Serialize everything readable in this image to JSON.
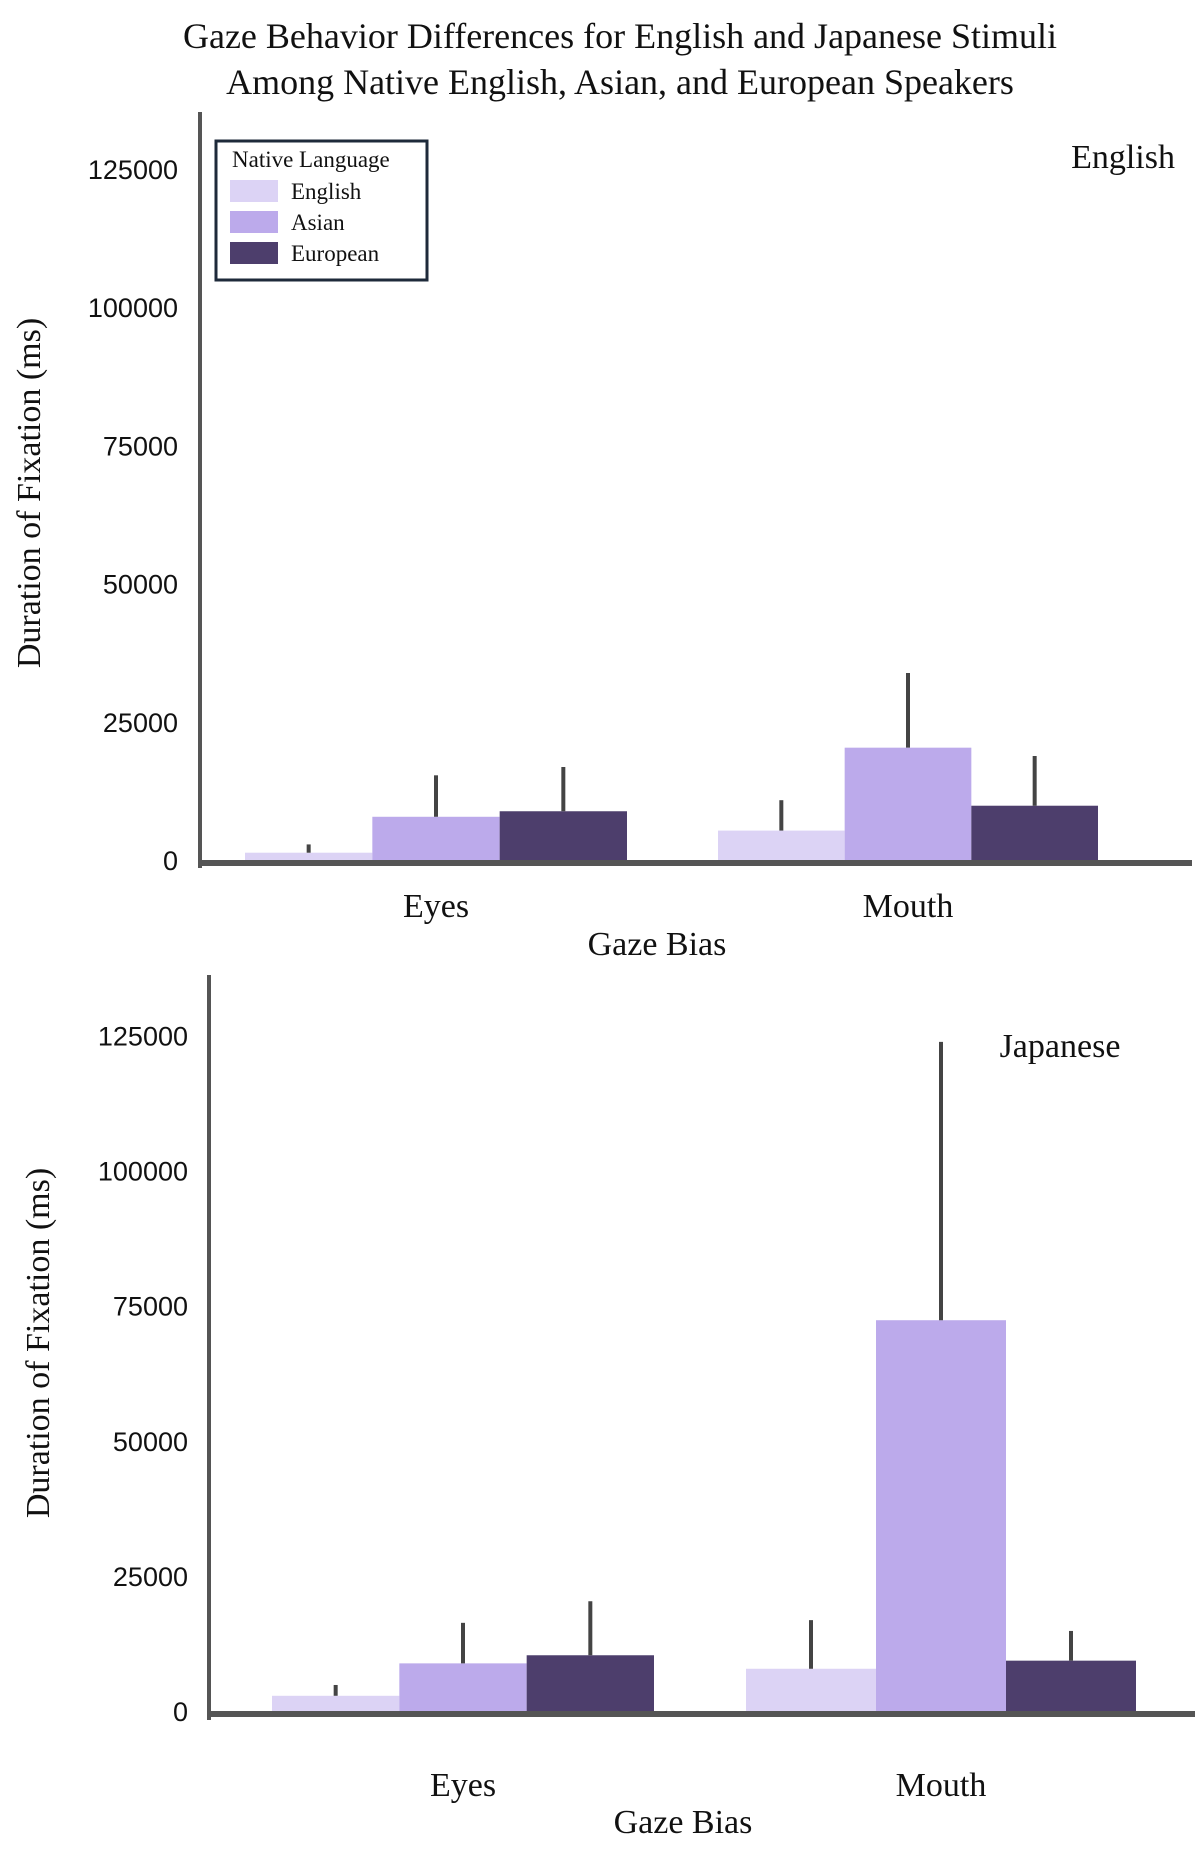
{
  "figure": {
    "title_line1": "Gaze Behavior Differences for English and Japanese Stimuli",
    "title_line2": "Among Native English, Asian, and European Speakers"
  },
  "legend": {
    "title": "Native Language",
    "items": [
      {
        "label": "English",
        "color": "#dcd3f5"
      },
      {
        "label": "Asian",
        "color": "#bcaaeb"
      },
      {
        "label": "European",
        "color": "#4d3e6c"
      }
    ]
  },
  "chart_data": [
    {
      "type": "bar",
      "panel_label": "English",
      "categories": [
        "Eyes",
        "Mouth"
      ],
      "xlabel": "Gaze Bias",
      "ylabel": "Duration of Fixation (ms)",
      "ylim": [
        0,
        135000
      ],
      "yticks": [
        0,
        25000,
        50000,
        75000,
        100000,
        125000
      ],
      "series": [
        {
          "name": "English",
          "color": "#dcd3f5",
          "values": [
            1500,
            5500
          ],
          "error_top": [
            3000,
            11000
          ]
        },
        {
          "name": "Asian",
          "color": "#bcaaeb",
          "values": [
            8000,
            20500
          ],
          "error_top": [
            15500,
            34000
          ]
        },
        {
          "name": "European",
          "color": "#4d3e6c",
          "values": [
            9000,
            10000
          ],
          "error_top": [
            17000,
            19000
          ]
        }
      ]
    },
    {
      "type": "bar",
      "panel_label": "Japanese",
      "categories": [
        "Eyes",
        "Mouth"
      ],
      "xlabel": "Gaze Bias",
      "ylabel": "Duration of Fixation (ms)",
      "ylim": [
        0,
        135000
      ],
      "yticks": [
        0,
        25000,
        50000,
        75000,
        100000,
        125000
      ],
      "series": [
        {
          "name": "English",
          "color": "#dcd3f5",
          "values": [
            3000,
            8000
          ],
          "error_top": [
            5000,
            17000
          ]
        },
        {
          "name": "Asian",
          "color": "#bcaaeb",
          "values": [
            9000,
            72500
          ],
          "error_top": [
            16500,
            124000
          ]
        },
        {
          "name": "European",
          "color": "#4d3e6c",
          "values": [
            10500,
            9500
          ],
          "error_top": [
            20500,
            15000
          ]
        }
      ]
    }
  ]
}
